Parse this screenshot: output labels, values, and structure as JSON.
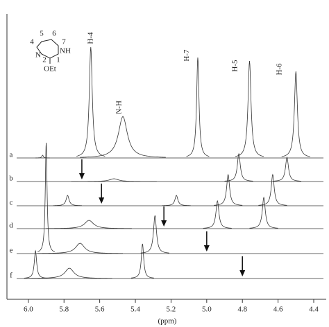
{
  "chart_data": {
    "type": "nmr-stack",
    "x_label": "(ppm)",
    "xlim": [
      6.12,
      4.33
    ],
    "xticks": [
      {
        "value": 6.0,
        "label": "6.0"
      },
      {
        "value": 5.8,
        "label": "5.8"
      },
      {
        "value": 5.6,
        "label": "5.6"
      },
      {
        "value": 5.4,
        "label": "5.4"
      },
      {
        "value": 5.2,
        "label": "5.2"
      },
      {
        "value": 5.0,
        "label": "5.0"
      },
      {
        "value": 4.8,
        "label": "4.8"
      },
      {
        "value": 4.6,
        "label": "4.6"
      },
      {
        "value": 4.4,
        "label": "4.4"
      }
    ],
    "color": "#333333",
    "traces": [
      {
        "name": "a",
        "peaks": [
          {
            "ppm": 5.92,
            "height": 4,
            "width": 0.005
          },
          {
            "ppm": 5.65,
            "height": 160,
            "width": 0.01
          },
          {
            "ppm": 5.47,
            "height": 60,
            "width": 0.03
          },
          {
            "ppm": 5.05,
            "height": 145,
            "width": 0.008
          },
          {
            "ppm": 4.76,
            "height": 140,
            "width": 0.01
          },
          {
            "ppm": 4.5,
            "height": 125,
            "width": 0.01
          }
        ]
      },
      {
        "name": "b",
        "arrow": 5.7,
        "peaks": [
          {
            "ppm": 5.52,
            "height": 4,
            "width": 0.03
          },
          {
            "ppm": 4.82,
            "height": 40,
            "width": 0.01
          },
          {
            "ppm": 4.55,
            "height": 35,
            "width": 0.01
          }
        ]
      },
      {
        "name": "c",
        "arrow": 5.59,
        "peaks": [
          {
            "ppm": 5.78,
            "height": 15,
            "width": 0.01
          },
          {
            "ppm": 5.17,
            "height": 15,
            "width": 0.01
          },
          {
            "ppm": 4.88,
            "height": 45,
            "width": 0.01
          },
          {
            "ppm": 4.63,
            "height": 45,
            "width": 0.01
          }
        ]
      },
      {
        "name": "d",
        "arrow": 5.24,
        "peaks": [
          {
            "ppm": 5.66,
            "height": 12,
            "width": 0.03
          },
          {
            "ppm": 4.94,
            "height": 40,
            "width": 0.01
          },
          {
            "ppm": 4.68,
            "height": 45,
            "width": 0.01
          }
        ]
      },
      {
        "name": "e",
        "arrow": 5.0,
        "peaks": [
          {
            "ppm": 5.9,
            "height": 160,
            "width": 0.006
          },
          {
            "ppm": 5.71,
            "height": 15,
            "width": 0.03
          },
          {
            "ppm": 5.29,
            "height": 55,
            "width": 0.01
          }
        ]
      },
      {
        "name": "f",
        "arrow": 4.8,
        "peaks": [
          {
            "ppm": 5.96,
            "height": 40,
            "width": 0.008
          },
          {
            "ppm": 5.77,
            "height": 15,
            "width": 0.03
          },
          {
            "ppm": 5.36,
            "height": 50,
            "width": 0.008
          }
        ]
      }
    ],
    "annotations": [
      {
        "text": "H-4",
        "ppm": 5.65
      },
      {
        "text": "N-H",
        "ppm": 5.49
      },
      {
        "text": "H-7",
        "ppm": 5.11
      },
      {
        "text": "H-5",
        "ppm": 4.84
      },
      {
        "text": "H-6",
        "ppm": 4.59
      }
    ],
    "structure": {
      "labels": [
        "5",
        "6",
        "4",
        "7",
        "N",
        "NH",
        "2",
        "1",
        "OEt"
      ]
    }
  }
}
